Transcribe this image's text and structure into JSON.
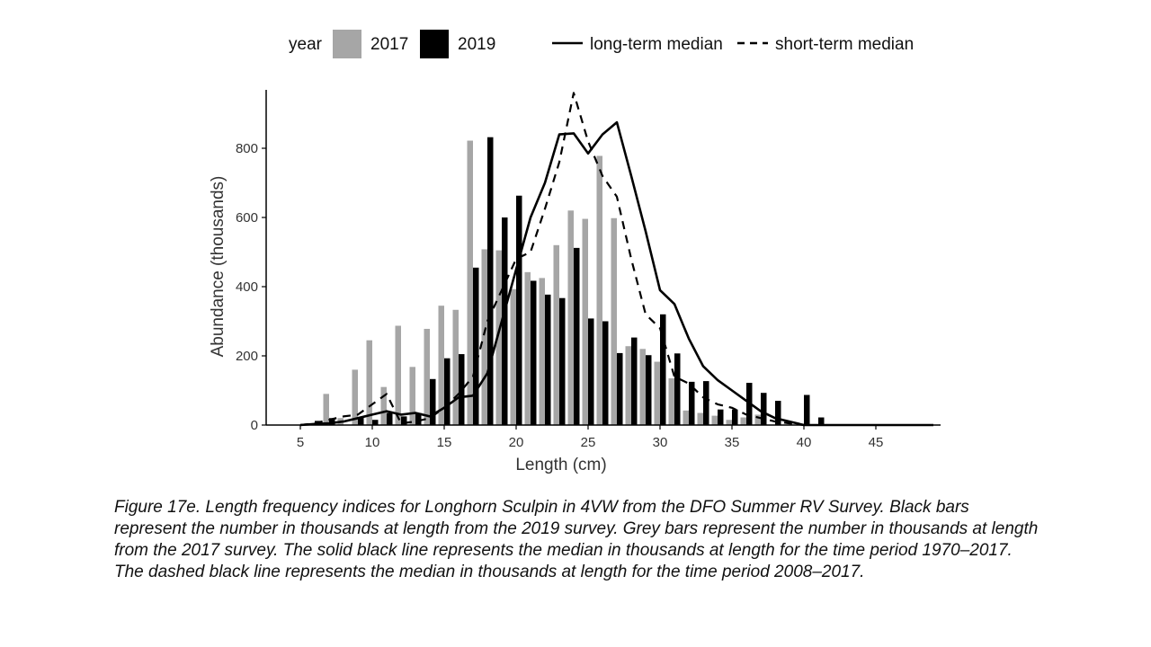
{
  "legend": {
    "title": "year",
    "bar_entries": [
      "2017",
      "2019"
    ],
    "line_entries": [
      "long-term median",
      "short-term median"
    ]
  },
  "caption": "Figure 17e. Length frequency indices for Longhorn Sculpin in 4VW from the DFO Summer RV Survey. Black bars represent the number in thousands at length from the 2019 survey. Grey bars represent the number in thousands at length from the 2017 survey. The solid black line represents the median in thousands at length for the time period 1970–2017. The dashed black line represents the median in thousands at length for the time period 2008–2017.",
  "colors": {
    "bar_2017": "#a6a6a6",
    "bar_2019": "#000000",
    "line": "#000000"
  },
  "chart_data": {
    "type": "bar",
    "title": "",
    "xlabel": "Length (cm)",
    "ylabel": "Abundance (thousands)",
    "xlim": [
      3,
      50
    ],
    "ylim": [
      0,
      960
    ],
    "xticks": [
      5,
      10,
      15,
      20,
      25,
      30,
      35,
      40,
      45
    ],
    "yticks": [
      0,
      200,
      400,
      600,
      800
    ],
    "grid": false,
    "legend_position": "top",
    "x": [
      6,
      7,
      8,
      9,
      10,
      11,
      12,
      13,
      14,
      15,
      16,
      17,
      18,
      19,
      20,
      21,
      22,
      23,
      24,
      25,
      26,
      27,
      28,
      29,
      30,
      31,
      32,
      33,
      34,
      35,
      36,
      37,
      38,
      39,
      40,
      41
    ],
    "series": [
      {
        "name": "2017",
        "kind": "bar",
        "values": [
          0,
          90,
          20,
          160,
          245,
          110,
          287,
          168,
          278,
          345,
          333,
          822,
          508,
          505,
          393,
          442,
          425,
          520,
          620,
          596,
          778,
          598,
          228,
          220,
          183,
          135,
          42,
          35,
          27,
          15,
          22,
          30,
          0,
          0,
          0,
          0
        ]
      },
      {
        "name": "2019",
        "kind": "bar",
        "values": [
          12,
          20,
          0,
          22,
          15,
          35,
          25,
          35,
          133,
          193,
          205,
          455,
          832,
          600,
          663,
          417,
          377,
          367,
          512,
          308,
          300,
          208,
          253,
          202,
          320,
          207,
          125,
          127,
          45,
          45,
          122,
          93,
          70,
          0,
          87,
          22
        ]
      },
      {
        "name": "long-term median",
        "kind": "line",
        "style": "solid",
        "x": [
          5,
          6,
          7,
          8,
          9,
          10,
          11,
          12,
          13,
          14,
          15,
          16,
          17,
          18,
          19,
          20,
          21,
          22,
          23,
          24,
          25,
          26,
          27,
          28,
          29,
          30,
          31,
          32,
          33,
          34,
          35,
          36,
          37,
          38,
          39,
          40,
          41,
          42,
          43,
          44,
          45,
          46,
          47,
          48,
          49
        ],
        "values": [
          0,
          3,
          5,
          10,
          20,
          30,
          40,
          30,
          35,
          25,
          50,
          80,
          85,
          150,
          300,
          450,
          600,
          700,
          840,
          843,
          785,
          840,
          875,
          720,
          560,
          390,
          350,
          250,
          170,
          130,
          100,
          70,
          40,
          20,
          10,
          0,
          0,
          0,
          0,
          0,
          0,
          0,
          0,
          0,
          0
        ]
      },
      {
        "name": "short-term median",
        "kind": "line",
        "style": "dashed",
        "x": [
          5,
          6,
          7,
          8,
          9,
          10,
          11,
          12,
          13,
          14,
          15,
          16,
          17,
          18,
          19,
          20,
          21,
          22,
          23,
          24,
          25,
          26,
          27,
          28,
          29,
          30,
          31,
          32,
          33,
          34,
          35,
          36,
          37,
          38,
          39,
          40
        ],
        "values": [
          0,
          5,
          15,
          25,
          30,
          60,
          90,
          5,
          10,
          20,
          50,
          90,
          140,
          300,
          390,
          480,
          500,
          625,
          760,
          960,
          820,
          720,
          660,
          480,
          320,
          280,
          140,
          120,
          80,
          60,
          50,
          30,
          20,
          10,
          5,
          0
        ]
      }
    ]
  }
}
